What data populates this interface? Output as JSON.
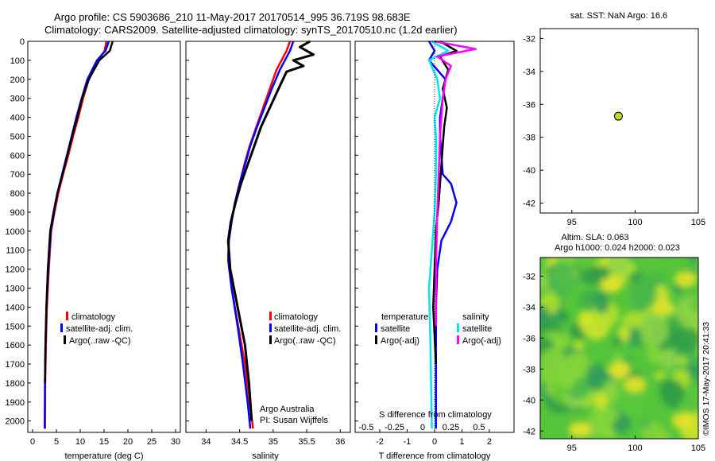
{
  "header": {
    "line1": "Argo profile: CS 5903686_210 11-May-2017 20170514_995 36.719S 98.683E",
    "line2": "Climatology: CARS2009. Satellite-adjusted climatology: synTS_20170510.nc (1.2d earlier)"
  },
  "colors": {
    "climatology": "#ff0000",
    "satellite": "#0000ff",
    "argo": "#000000",
    "sal_satellite": "#00e5ee",
    "sal_argo": "#ff00ff",
    "float_marker": "#bcd92a"
  },
  "chart_data": [
    {
      "id": "temperature",
      "type": "line",
      "xlabel": "temperature (deg C)",
      "xlim": [
        -1,
        31
      ],
      "xticks": [
        "0",
        "5",
        "10",
        "15",
        "20",
        "25",
        "30"
      ],
      "xtick_values": [
        0,
        5,
        10,
        15,
        20,
        25,
        30
      ],
      "ylim": [
        0,
        2060
      ],
      "yticks": [
        "0",
        "100",
        "200",
        "300",
        "400",
        "500",
        "600",
        "700",
        "800",
        "900",
        "1000",
        "1100",
        "1200",
        "1300",
        "1400",
        "1500",
        "1600",
        "1700",
        "1800",
        "1900",
        "2000"
      ],
      "ytick_values": [
        0,
        100,
        200,
        300,
        400,
        500,
        600,
        700,
        800,
        900,
        1000,
        1100,
        1200,
        1300,
        1400,
        1500,
        1600,
        1700,
        1800,
        1900,
        2000
      ],
      "legend": [
        "climatology",
        "satellite-adj. clim.",
        "Argo(..raw -QC)"
      ],
      "series": [
        {
          "name": "climatology",
          "color": "#ff0000",
          "x": [
            15.5,
            15.1,
            13.8,
            11.8,
            10.6,
            9.6,
            8.5,
            7.5,
            6.4,
            5.4,
            4.6,
            3.9,
            3.4,
            3.0,
            2.8,
            2.65,
            2.6
          ],
          "y": [
            0,
            50,
            100,
            200,
            300,
            400,
            500,
            600,
            700,
            800,
            900,
            1000,
            1200,
            1400,
            1600,
            1800,
            2040
          ]
        },
        {
          "name": "satellite-adj. clim.",
          "color": "#0000ff",
          "x": [
            16.0,
            15.3,
            13.5,
            11.5,
            10.3,
            9.2,
            8.2,
            7.2,
            6.2,
            5.2,
            4.5,
            3.8,
            3.3,
            2.9,
            2.7,
            2.6,
            2.55
          ],
          "y": [
            0,
            50,
            100,
            200,
            300,
            400,
            500,
            600,
            700,
            800,
            900,
            1000,
            1200,
            1400,
            1600,
            1800,
            2040
          ]
        },
        {
          "name": "Argo(..raw -QC)",
          "color": "#000000",
          "x": [
            16.8,
            16.2,
            14.0,
            11.8,
            10.4,
            9.4,
            8.3,
            7.3,
            6.3,
            5.2,
            4.4,
            3.7,
            3.2,
            2.9,
            2.7,
            2.6
          ],
          "y": [
            0,
            50,
            100,
            200,
            300,
            400,
            500,
            600,
            700,
            800,
            900,
            1000,
            1200,
            1400,
            1600,
            1800
          ]
        }
      ]
    },
    {
      "id": "salinity",
      "type": "line",
      "xlabel": "salinity",
      "xlim": [
        33.7,
        36.15
      ],
      "xticks": [
        "34",
        "34.5",
        "35",
        "35.5",
        "36"
      ],
      "xtick_values": [
        34,
        34.5,
        35,
        35.5,
        36
      ],
      "ylim": [
        0,
        2060
      ],
      "legend": [
        "climatology",
        "satellite-adj. clim.",
        "Argo(..raw -QC)"
      ],
      "annotation": [
        "Argo Australia",
        "PI: Susan Wijffels"
      ],
      "series": [
        {
          "name": "climatology",
          "color": "#ff0000",
          "x": [
            35.25,
            35.2,
            35.05,
            34.95,
            34.85,
            34.75,
            34.65,
            34.57,
            34.5,
            34.43,
            34.38,
            34.34,
            34.33,
            34.38,
            34.48,
            34.58,
            34.65,
            34.7
          ],
          "y": [
            0,
            50,
            150,
            250,
            350,
            450,
            550,
            650,
            750,
            850,
            950,
            1050,
            1150,
            1300,
            1500,
            1700,
            1900,
            2040
          ]
        },
        {
          "name": "satellite-adj. clim.",
          "color": "#0000ff",
          "x": [
            35.3,
            35.25,
            35.1,
            34.98,
            34.87,
            34.76,
            34.66,
            34.58,
            34.5,
            34.43,
            34.38,
            34.34,
            34.33,
            34.38,
            34.47,
            34.55,
            34.62,
            34.66
          ],
          "y": [
            0,
            50,
            150,
            250,
            350,
            450,
            550,
            650,
            750,
            850,
            950,
            1050,
            1150,
            1300,
            1500,
            1700,
            1900,
            2040
          ]
        },
        {
          "name": "Argo(..raw -QC)",
          "color": "#000000",
          "x": [
            35.55,
            35.4,
            35.6,
            35.3,
            35.45,
            35.2,
            35.08,
            34.95,
            34.82,
            34.72,
            34.62,
            34.52,
            34.44,
            34.37,
            34.33,
            34.36,
            34.47,
            34.58,
            34.64,
            34.68
          ],
          "y": [
            0,
            30,
            70,
            100,
            130,
            160,
            250,
            350,
            450,
            550,
            650,
            750,
            850,
            950,
            1050,
            1200,
            1400,
            1600,
            1800,
            2000
          ]
        }
      ]
    },
    {
      "id": "differences",
      "type": "line",
      "xlabel": "T difference from climatology",
      "xlim": [
        -2.9,
        2.9
      ],
      "xticks": [
        "-2",
        "-1",
        "0",
        "1",
        "2"
      ],
      "xtick_values": [
        -2,
        -1,
        0,
        1,
        2
      ],
      "top_label": "S difference from climatology",
      "top_ticks": [
        "-0.5",
        "-0.25",
        "0",
        "0.25",
        "0.5"
      ],
      "top_tick_values": [
        -2.9,
        -1.45,
        0,
        1.45,
        2.9
      ],
      "ylim": [
        0,
        2060
      ],
      "legend_headers": [
        "temperature",
        "salinity"
      ],
      "legend": [
        "satellite",
        "Argo(-adj)",
        "satellite",
        "Argo(-adj)"
      ],
      "series": [
        {
          "name": "temperature satellite",
          "color": "#0000ff",
          "x": [
            -0.2,
            0.0,
            -0.2,
            0.4,
            0.3,
            0.2,
            0.2,
            0.25,
            0.3,
            0.6,
            0.8,
            0.6,
            0.25,
            0.1,
            0.05,
            0.05,
            0.05
          ],
          "y": [
            0,
            50,
            100,
            200,
            300,
            400,
            500,
            600,
            700,
            750,
            850,
            950,
            1050,
            1200,
            1400,
            1600,
            2040
          ]
        },
        {
          "name": "temperature Argo(-adj)",
          "color": "#000000",
          "x": [
            0.2,
            0.8,
            0.2,
            0.5,
            0.3,
            0.45,
            0.35,
            0.3,
            0.25,
            0.2,
            0.15,
            0.05,
            0.0,
            -0.05,
            0.05
          ],
          "y": [
            0,
            50,
            80,
            150,
            250,
            350,
            450,
            550,
            650,
            750,
            850,
            1000,
            1200,
            1400,
            1700
          ]
        },
        {
          "name": "salinity satellite",
          "color": "#00e5ee",
          "x": [
            -0.1,
            0.5,
            -0.2,
            0.1,
            0.2,
            0.0,
            0.05,
            0.05,
            0.0,
            -0.1,
            -0.2,
            -0.15,
            -0.1
          ],
          "y": [
            0,
            50,
            100,
            200,
            300,
            400,
            500,
            700,
            900,
            1100,
            1300,
            1600,
            2040
          ]
        },
        {
          "name": "salinity Argo(-adj)",
          "color": "#ff00ff",
          "x": [
            0.0,
            1.5,
            0.1,
            0.6,
            0.4,
            0.3,
            0.2,
            0.15,
            0.1,
            0.05,
            0.05
          ],
          "y": [
            0,
            40,
            80,
            130,
            200,
            300,
            500,
            700,
            900,
            1200,
            1500
          ]
        }
      ]
    },
    {
      "id": "location",
      "type": "scatter",
      "title": "sat. SST: NaN Argo: 16.6",
      "xlim": [
        92.5,
        105
      ],
      "xticks": [
        "95",
        "100",
        "105"
      ],
      "xtick_values": [
        95,
        100,
        105
      ],
      "ylim": [
        -42.6,
        -31.4
      ],
      "yticks": [
        "-32",
        "-34",
        "-36",
        "-38",
        "-40",
        "-42"
      ],
      "ytick_values": [
        -32,
        -34,
        -36,
        -38,
        -40,
        -42
      ],
      "points": [
        {
          "x": 98.683,
          "y": -36.719
        }
      ]
    },
    {
      "id": "sla_map",
      "type": "heatmap",
      "title1": "Altim. SLA: 0.063",
      "title2": "Argo h1000: 0.024 h2000: 0.023",
      "xlim": [
        92.5,
        105
      ],
      "xticks": [
        "95",
        "100",
        "105"
      ],
      "xtick_values": [
        95,
        100,
        105
      ],
      "ylim": [
        -42.5,
        -30.8
      ],
      "yticks": [
        "-32",
        "-34",
        "-36",
        "-38",
        "-40",
        "-42"
      ],
      "ytick_values": [
        -32,
        -34,
        -36,
        -38,
        -40,
        -42
      ],
      "credit": "©IMOS 17-May-2017 20:41:33"
    }
  ]
}
